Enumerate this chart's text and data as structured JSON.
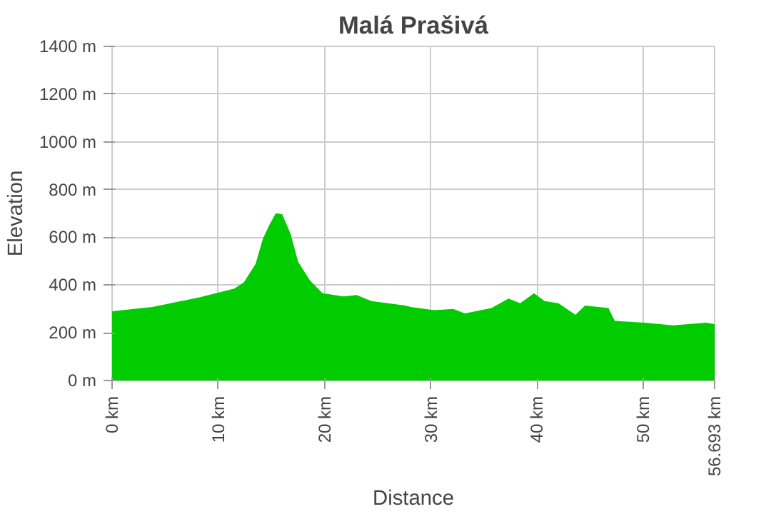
{
  "chart_data": {
    "type": "area",
    "title": "Malá Prašivá",
    "xlabel": "Distance",
    "ylabel": "Elevation",
    "x": [
      0,
      3.8,
      8.3,
      11.5,
      12.4,
      13.5,
      14.2,
      14.8,
      15.4,
      16.0,
      16.8,
      17.5,
      18.6,
      19.8,
      21.8,
      23.0,
      24.4,
      27.6,
      28.1,
      30.3,
      32.1,
      33.2,
      35.7,
      37.3,
      38.4,
      39.7,
      40.7,
      42.0,
      43.6,
      44.5,
      46.7,
      47.3,
      50.1,
      52.8,
      55.9,
      56.693
    ],
    "series": [
      {
        "color": "#00cc00",
        "values": [
          290,
          308,
          349,
          385,
          411,
          488,
          595,
          652,
          701,
          697,
          614,
          498,
          420,
          366,
          352,
          358,
          333,
          314,
          308,
          295,
          300,
          281,
          304,
          343,
          324,
          366,
          333,
          324,
          275,
          314,
          304,
          250,
          242,
          231,
          242,
          236
        ]
      }
    ],
    "xlim": [
      0,
      56.693
    ],
    "ylim": [
      0,
      1400
    ],
    "xticks": [
      {
        "value": 0,
        "label": "0 km"
      },
      {
        "value": 10,
        "label": "10 km"
      },
      {
        "value": 20,
        "label": "20 km"
      },
      {
        "value": 30,
        "label": "30 km"
      },
      {
        "value": 40,
        "label": "40 km"
      },
      {
        "value": 50,
        "label": "50 km"
      },
      {
        "value": 56.693,
        "label": "56.693 km"
      }
    ],
    "yticks": [
      {
        "value": 0,
        "label": "0 m"
      },
      {
        "value": 200,
        "label": "200 m"
      },
      {
        "value": 400,
        "label": "400 m"
      },
      {
        "value": 600,
        "label": "600 m"
      },
      {
        "value": 800,
        "label": "800 m"
      },
      {
        "value": 1000,
        "label": "1000 m"
      },
      {
        "value": 1200,
        "label": "1200 m"
      },
      {
        "value": 1400,
        "label": "1400 m"
      }
    ],
    "grid": true
  }
}
